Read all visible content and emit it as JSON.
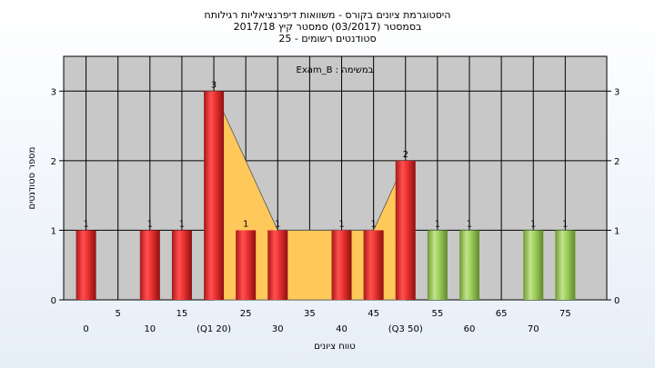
{
  "chart_data": {
    "type": "bar",
    "title": [
      "היסטוגרמת ציונים בקורס - משוואות דיפרנציאליות רגילותח",
      "בסמסטר  (03/2017)  סמסטר קיץ  2017/18",
      "סטודנטים רשומים - 25"
    ],
    "annotation": "במשימה : Exam_B",
    "xlabel": "טווח ציונים",
    "ylabel": "מספר סטודנטים",
    "ylim": [
      0,
      3.5
    ],
    "yticks": [
      0,
      1,
      2,
      3
    ],
    "x_tick_labels": [
      "0",
      "5",
      "10",
      "15",
      "(Q1 20)",
      "25",
      "30",
      "35",
      "40",
      "45",
      "(Q3 50)",
      "55",
      "60",
      "65",
      "70",
      "75"
    ],
    "bars": [
      {
        "x": 0,
        "value": 1,
        "label": "1",
        "color": "red"
      },
      {
        "x": 10,
        "value": 1,
        "label": "1",
        "color": "red"
      },
      {
        "x": 15,
        "value": 1,
        "label": "1",
        "color": "red"
      },
      {
        "x": 20,
        "value": 3,
        "label": "3",
        "color": "red"
      },
      {
        "x": 25,
        "value": 1,
        "label": "1",
        "color": "red"
      },
      {
        "x": 30,
        "value": 1,
        "label": "1",
        "color": "red"
      },
      {
        "x": 40,
        "value": 1,
        "label": "1",
        "color": "red"
      },
      {
        "x": 45,
        "value": 1,
        "label": "1",
        "color": "red"
      },
      {
        "x": 50,
        "value": 2,
        "label": "2",
        "color": "red"
      },
      {
        "x": 55,
        "value": 1,
        "label": "1",
        "color": "green"
      },
      {
        "x": 60,
        "value": 1,
        "label": "1",
        "color": "green"
      },
      {
        "x": 70,
        "value": 1,
        "label": "1",
        "color": "green"
      },
      {
        "x": 75,
        "value": 1,
        "label": "1",
        "color": "green"
      }
    ],
    "interquartile_area": {
      "points": [
        [
          20,
          3
        ],
        [
          30,
          1
        ],
        [
          45,
          1
        ],
        [
          50,
          2
        ]
      ],
      "color": "#ffc85a"
    },
    "colors": {
      "plot_background": "#c8c8c8",
      "red_bar": "#e83030",
      "green_bar": "#9ccc5a",
      "grid": "#000000",
      "area_fill": "#ffc85a"
    },
    "grid": true
  }
}
